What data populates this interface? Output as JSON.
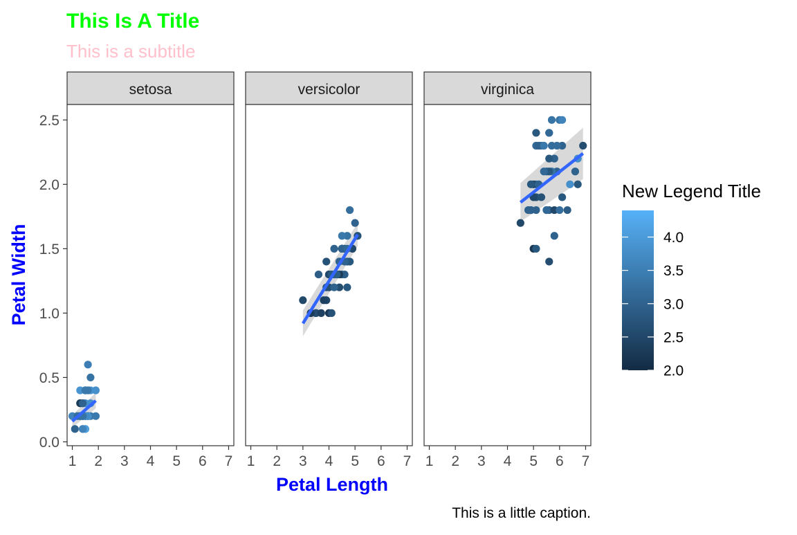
{
  "chart_data": {
    "type": "scatter",
    "title": "This Is A Title",
    "subtitle": "This is a subtitle",
    "xlabel": "Petal Length",
    "ylabel": "Petal Width",
    "caption": "This is a little caption.",
    "xlim": [
      0.8,
      7.2
    ],
    "ylim": [
      -0.03,
      2.62
    ],
    "x_ticks": [
      1,
      2,
      3,
      4,
      5,
      6,
      7
    ],
    "y_ticks": [
      0.0,
      0.5,
      1.0,
      1.5,
      2.0,
      2.5
    ],
    "y_tick_labels": [
      "0.0",
      "0.5",
      "1.0",
      "1.5",
      "2.0",
      "2.5"
    ],
    "grid": false,
    "colors": {
      "title": "#00ff00",
      "subtitle": "#ffc0cb",
      "axis_title": "#0000ff",
      "smooth_line": "#3366ff",
      "ribbon": "#bfbfbf",
      "strip": "#d9d9d9",
      "color_low": "#132b43",
      "color_high": "#56b1f7"
    },
    "legend": {
      "title": "New Legend Title",
      "position": "right",
      "min": 2.0,
      "max": 4.4,
      "breaks": [
        2.0,
        2.5,
        3.0,
        3.5,
        4.0
      ],
      "labels": [
        "2.0",
        "2.5",
        "3.0",
        "3.5",
        "4.0"
      ]
    },
    "facets": [
      {
        "label": "setosa",
        "smooth": {
          "x": [
            1.0,
            1.9
          ],
          "y": [
            0.16,
            0.32
          ],
          "se_lo": [
            0.11,
            0.26
          ],
          "se_hi": [
            0.21,
            0.38
          ]
        },
        "points": [
          {
            "x": 1.4,
            "y": 0.2,
            "c": 3.5
          },
          {
            "x": 1.4,
            "y": 0.2,
            "c": 3.0
          },
          {
            "x": 1.3,
            "y": 0.2,
            "c": 3.2
          },
          {
            "x": 1.5,
            "y": 0.2,
            "c": 3.1
          },
          {
            "x": 1.4,
            "y": 0.2,
            "c": 3.6
          },
          {
            "x": 1.7,
            "y": 0.4,
            "c": 3.9
          },
          {
            "x": 1.4,
            "y": 0.3,
            "c": 3.4
          },
          {
            "x": 1.5,
            "y": 0.2,
            "c": 3.4
          },
          {
            "x": 1.4,
            "y": 0.2,
            "c": 2.9
          },
          {
            "x": 1.5,
            "y": 0.1,
            "c": 3.1
          },
          {
            "x": 1.5,
            "y": 0.2,
            "c": 3.7
          },
          {
            "x": 1.6,
            "y": 0.2,
            "c": 3.4
          },
          {
            "x": 1.4,
            "y": 0.1,
            "c": 3.0
          },
          {
            "x": 1.1,
            "y": 0.1,
            "c": 3.0
          },
          {
            "x": 1.2,
            "y": 0.2,
            "c": 4.0
          },
          {
            "x": 1.5,
            "y": 0.4,
            "c": 4.4
          },
          {
            "x": 1.3,
            "y": 0.4,
            "c": 3.9
          },
          {
            "x": 1.4,
            "y": 0.3,
            "c": 3.5
          },
          {
            "x": 1.7,
            "y": 0.3,
            "c": 3.8
          },
          {
            "x": 1.5,
            "y": 0.3,
            "c": 3.8
          },
          {
            "x": 1.7,
            "y": 0.2,
            "c": 3.4
          },
          {
            "x": 1.5,
            "y": 0.4,
            "c": 3.7
          },
          {
            "x": 1.0,
            "y": 0.2,
            "c": 3.6
          },
          {
            "x": 1.7,
            "y": 0.5,
            "c": 3.3
          },
          {
            "x": 1.9,
            "y": 0.2,
            "c": 3.4
          },
          {
            "x": 1.6,
            "y": 0.2,
            "c": 3.0
          },
          {
            "x": 1.6,
            "y": 0.4,
            "c": 3.4
          },
          {
            "x": 1.5,
            "y": 0.2,
            "c": 3.5
          },
          {
            "x": 1.4,
            "y": 0.2,
            "c": 3.4
          },
          {
            "x": 1.6,
            "y": 0.2,
            "c": 3.2
          },
          {
            "x": 1.6,
            "y": 0.2,
            "c": 3.1
          },
          {
            "x": 1.5,
            "y": 0.4,
            "c": 3.4
          },
          {
            "x": 1.5,
            "y": 0.1,
            "c": 4.1
          },
          {
            "x": 1.4,
            "y": 0.2,
            "c": 4.2
          },
          {
            "x": 1.5,
            "y": 0.2,
            "c": 3.1
          },
          {
            "x": 1.2,
            "y": 0.2,
            "c": 3.2
          },
          {
            "x": 1.3,
            "y": 0.2,
            "c": 3.5
          },
          {
            "x": 1.4,
            "y": 0.1,
            "c": 3.6
          },
          {
            "x": 1.3,
            "y": 0.2,
            "c": 3.0
          },
          {
            "x": 1.5,
            "y": 0.2,
            "c": 3.4
          },
          {
            "x": 1.3,
            "y": 0.3,
            "c": 3.5
          },
          {
            "x": 1.3,
            "y": 0.3,
            "c": 2.3
          },
          {
            "x": 1.3,
            "y": 0.2,
            "c": 3.2
          },
          {
            "x": 1.6,
            "y": 0.6,
            "c": 3.5
          },
          {
            "x": 1.9,
            "y": 0.4,
            "c": 3.8
          },
          {
            "x": 1.4,
            "y": 0.3,
            "c": 3.0
          },
          {
            "x": 1.6,
            "y": 0.2,
            "c": 3.8
          },
          {
            "x": 1.4,
            "y": 0.2,
            "c": 3.2
          },
          {
            "x": 1.5,
            "y": 0.2,
            "c": 3.7
          },
          {
            "x": 1.4,
            "y": 0.2,
            "c": 3.3
          }
        ]
      },
      {
        "label": "versicolor",
        "smooth": {
          "x": [
            3.0,
            5.1
          ],
          "y": [
            0.92,
            1.61
          ],
          "se_lo": [
            0.82,
            1.52
          ],
          "se_hi": [
            1.02,
            1.7
          ]
        },
        "points": [
          {
            "x": 4.7,
            "y": 1.4,
            "c": 3.2
          },
          {
            "x": 4.5,
            "y": 1.5,
            "c": 3.2
          },
          {
            "x": 4.9,
            "y": 1.5,
            "c": 3.1
          },
          {
            "x": 4.0,
            "y": 1.3,
            "c": 2.3
          },
          {
            "x": 4.6,
            "y": 1.5,
            "c": 2.8
          },
          {
            "x": 4.5,
            "y": 1.3,
            "c": 2.8
          },
          {
            "x": 4.7,
            "y": 1.6,
            "c": 3.3
          },
          {
            "x": 3.3,
            "y": 1.0,
            "c": 2.4
          },
          {
            "x": 4.6,
            "y": 1.3,
            "c": 2.9
          },
          {
            "x": 3.9,
            "y": 1.4,
            "c": 2.7
          },
          {
            "x": 3.5,
            "y": 1.0,
            "c": 2.0
          },
          {
            "x": 4.2,
            "y": 1.5,
            "c": 3.0
          },
          {
            "x": 4.0,
            "y": 1.0,
            "c": 2.2
          },
          {
            "x": 4.7,
            "y": 1.4,
            "c": 2.9
          },
          {
            "x": 3.6,
            "y": 1.3,
            "c": 2.9
          },
          {
            "x": 4.4,
            "y": 1.4,
            "c": 3.1
          },
          {
            "x": 4.5,
            "y": 1.5,
            "c": 3.0
          },
          {
            "x": 4.1,
            "y": 1.0,
            "c": 2.7
          },
          {
            "x": 4.5,
            "y": 1.5,
            "c": 2.2
          },
          {
            "x": 3.9,
            "y": 1.1,
            "c": 2.5
          },
          {
            "x": 4.8,
            "y": 1.8,
            "c": 3.2
          },
          {
            "x": 4.0,
            "y": 1.3,
            "c": 2.8
          },
          {
            "x": 4.9,
            "y": 1.5,
            "c": 2.5
          },
          {
            "x": 4.7,
            "y": 1.2,
            "c": 2.8
          },
          {
            "x": 4.3,
            "y": 1.3,
            "c": 2.9
          },
          {
            "x": 4.4,
            "y": 1.4,
            "c": 3.0
          },
          {
            "x": 4.8,
            "y": 1.4,
            "c": 2.8
          },
          {
            "x": 5.0,
            "y": 1.7,
            "c": 3.0
          },
          {
            "x": 4.5,
            "y": 1.5,
            "c": 2.9
          },
          {
            "x": 3.5,
            "y": 1.0,
            "c": 2.6
          },
          {
            "x": 3.8,
            "y": 1.1,
            "c": 2.4
          },
          {
            "x": 3.7,
            "y": 1.0,
            "c": 2.4
          },
          {
            "x": 3.9,
            "y": 1.2,
            "c": 2.7
          },
          {
            "x": 5.1,
            "y": 1.6,
            "c": 2.7
          },
          {
            "x": 4.5,
            "y": 1.5,
            "c": 3.0
          },
          {
            "x": 4.5,
            "y": 1.6,
            "c": 3.4
          },
          {
            "x": 4.7,
            "y": 1.5,
            "c": 3.1
          },
          {
            "x": 4.4,
            "y": 1.3,
            "c": 2.3
          },
          {
            "x": 4.1,
            "y": 1.3,
            "c": 3.0
          },
          {
            "x": 4.0,
            "y": 1.3,
            "c": 2.5
          },
          {
            "x": 4.4,
            "y": 1.2,
            "c": 2.6
          },
          {
            "x": 4.6,
            "y": 1.4,
            "c": 3.0
          },
          {
            "x": 4.0,
            "y": 1.2,
            "c": 2.6
          },
          {
            "x": 3.3,
            "y": 1.0,
            "c": 2.3
          },
          {
            "x": 4.2,
            "y": 1.3,
            "c": 2.7
          },
          {
            "x": 4.2,
            "y": 1.2,
            "c": 3.0
          },
          {
            "x": 4.2,
            "y": 1.3,
            "c": 2.9
          },
          {
            "x": 4.3,
            "y": 1.3,
            "c": 2.9
          },
          {
            "x": 3.0,
            "y": 1.1,
            "c": 2.5
          },
          {
            "x": 4.1,
            "y": 1.3,
            "c": 2.8
          }
        ]
      },
      {
        "label": "virginica",
        "smooth": {
          "x": [
            4.5,
            6.9
          ],
          "y": [
            1.86,
            2.24
          ],
          "se_lo": [
            1.71,
            2.04
          ],
          "se_hi": [
            2.01,
            2.44
          ]
        },
        "points": [
          {
            "x": 6.0,
            "y": 2.5,
            "c": 3.3
          },
          {
            "x": 5.1,
            "y": 1.9,
            "c": 2.7
          },
          {
            "x": 5.9,
            "y": 2.1,
            "c": 3.0
          },
          {
            "x": 5.6,
            "y": 1.8,
            "c": 2.9
          },
          {
            "x": 5.8,
            "y": 2.2,
            "c": 3.0
          },
          {
            "x": 6.6,
            "y": 2.1,
            "c": 3.0
          },
          {
            "x": 4.5,
            "y": 1.7,
            "c": 2.5
          },
          {
            "x": 6.3,
            "y": 1.8,
            "c": 2.9
          },
          {
            "x": 5.8,
            "y": 1.8,
            "c": 2.5
          },
          {
            "x": 6.1,
            "y": 2.5,
            "c": 3.6
          },
          {
            "x": 5.1,
            "y": 2.0,
            "c": 3.2
          },
          {
            "x": 5.3,
            "y": 1.9,
            "c": 2.7
          },
          {
            "x": 5.5,
            "y": 2.1,
            "c": 3.0
          },
          {
            "x": 5.0,
            "y": 2.0,
            "c": 2.5
          },
          {
            "x": 5.1,
            "y": 2.4,
            "c": 2.8
          },
          {
            "x": 5.3,
            "y": 2.3,
            "c": 3.2
          },
          {
            "x": 5.5,
            "y": 1.8,
            "c": 3.0
          },
          {
            "x": 6.7,
            "y": 2.2,
            "c": 3.8
          },
          {
            "x": 6.9,
            "y": 2.3,
            "c": 2.6
          },
          {
            "x": 5.0,
            "y": 1.5,
            "c": 2.2
          },
          {
            "x": 5.7,
            "y": 2.3,
            "c": 3.2
          },
          {
            "x": 4.9,
            "y": 2.0,
            "c": 2.8
          },
          {
            "x": 6.7,
            "y": 2.0,
            "c": 2.8
          },
          {
            "x": 4.9,
            "y": 1.8,
            "c": 2.7
          },
          {
            "x": 5.7,
            "y": 2.1,
            "c": 3.3
          },
          {
            "x": 6.0,
            "y": 1.8,
            "c": 3.2
          },
          {
            "x": 4.8,
            "y": 1.8,
            "c": 2.8
          },
          {
            "x": 4.9,
            "y": 1.8,
            "c": 3.0
          },
          {
            "x": 5.6,
            "y": 2.1,
            "c": 2.8
          },
          {
            "x": 5.8,
            "y": 1.6,
            "c": 3.0
          },
          {
            "x": 6.1,
            "y": 1.9,
            "c": 2.8
          },
          {
            "x": 6.4,
            "y": 2.0,
            "c": 3.8
          },
          {
            "x": 5.6,
            "y": 2.2,
            "c": 2.8
          },
          {
            "x": 5.1,
            "y": 1.5,
            "c": 2.8
          },
          {
            "x": 5.6,
            "y": 1.4,
            "c": 2.6
          },
          {
            "x": 6.1,
            "y": 2.3,
            "c": 3.0
          },
          {
            "x": 5.6,
            "y": 2.4,
            "c": 3.4
          },
          {
            "x": 5.5,
            "y": 1.8,
            "c": 3.1
          },
          {
            "x": 4.8,
            "y": 1.8,
            "c": 3.0
          },
          {
            "x": 5.4,
            "y": 2.1,
            "c": 3.1
          },
          {
            "x": 5.6,
            "y": 2.4,
            "c": 3.1
          },
          {
            "x": 5.1,
            "y": 2.3,
            "c": 3.1
          },
          {
            "x": 5.1,
            "y": 1.9,
            "c": 2.7
          },
          {
            "x": 5.9,
            "y": 2.3,
            "c": 3.2
          },
          {
            "x": 5.7,
            "y": 2.5,
            "c": 3.3
          },
          {
            "x": 5.2,
            "y": 2.3,
            "c": 3.0
          },
          {
            "x": 5.0,
            "y": 1.9,
            "c": 2.5
          },
          {
            "x": 5.2,
            "y": 2.0,
            "c": 3.0
          },
          {
            "x": 5.4,
            "y": 2.3,
            "c": 3.4
          },
          {
            "x": 5.1,
            "y": 1.8,
            "c": 3.0
          }
        ]
      }
    ]
  }
}
